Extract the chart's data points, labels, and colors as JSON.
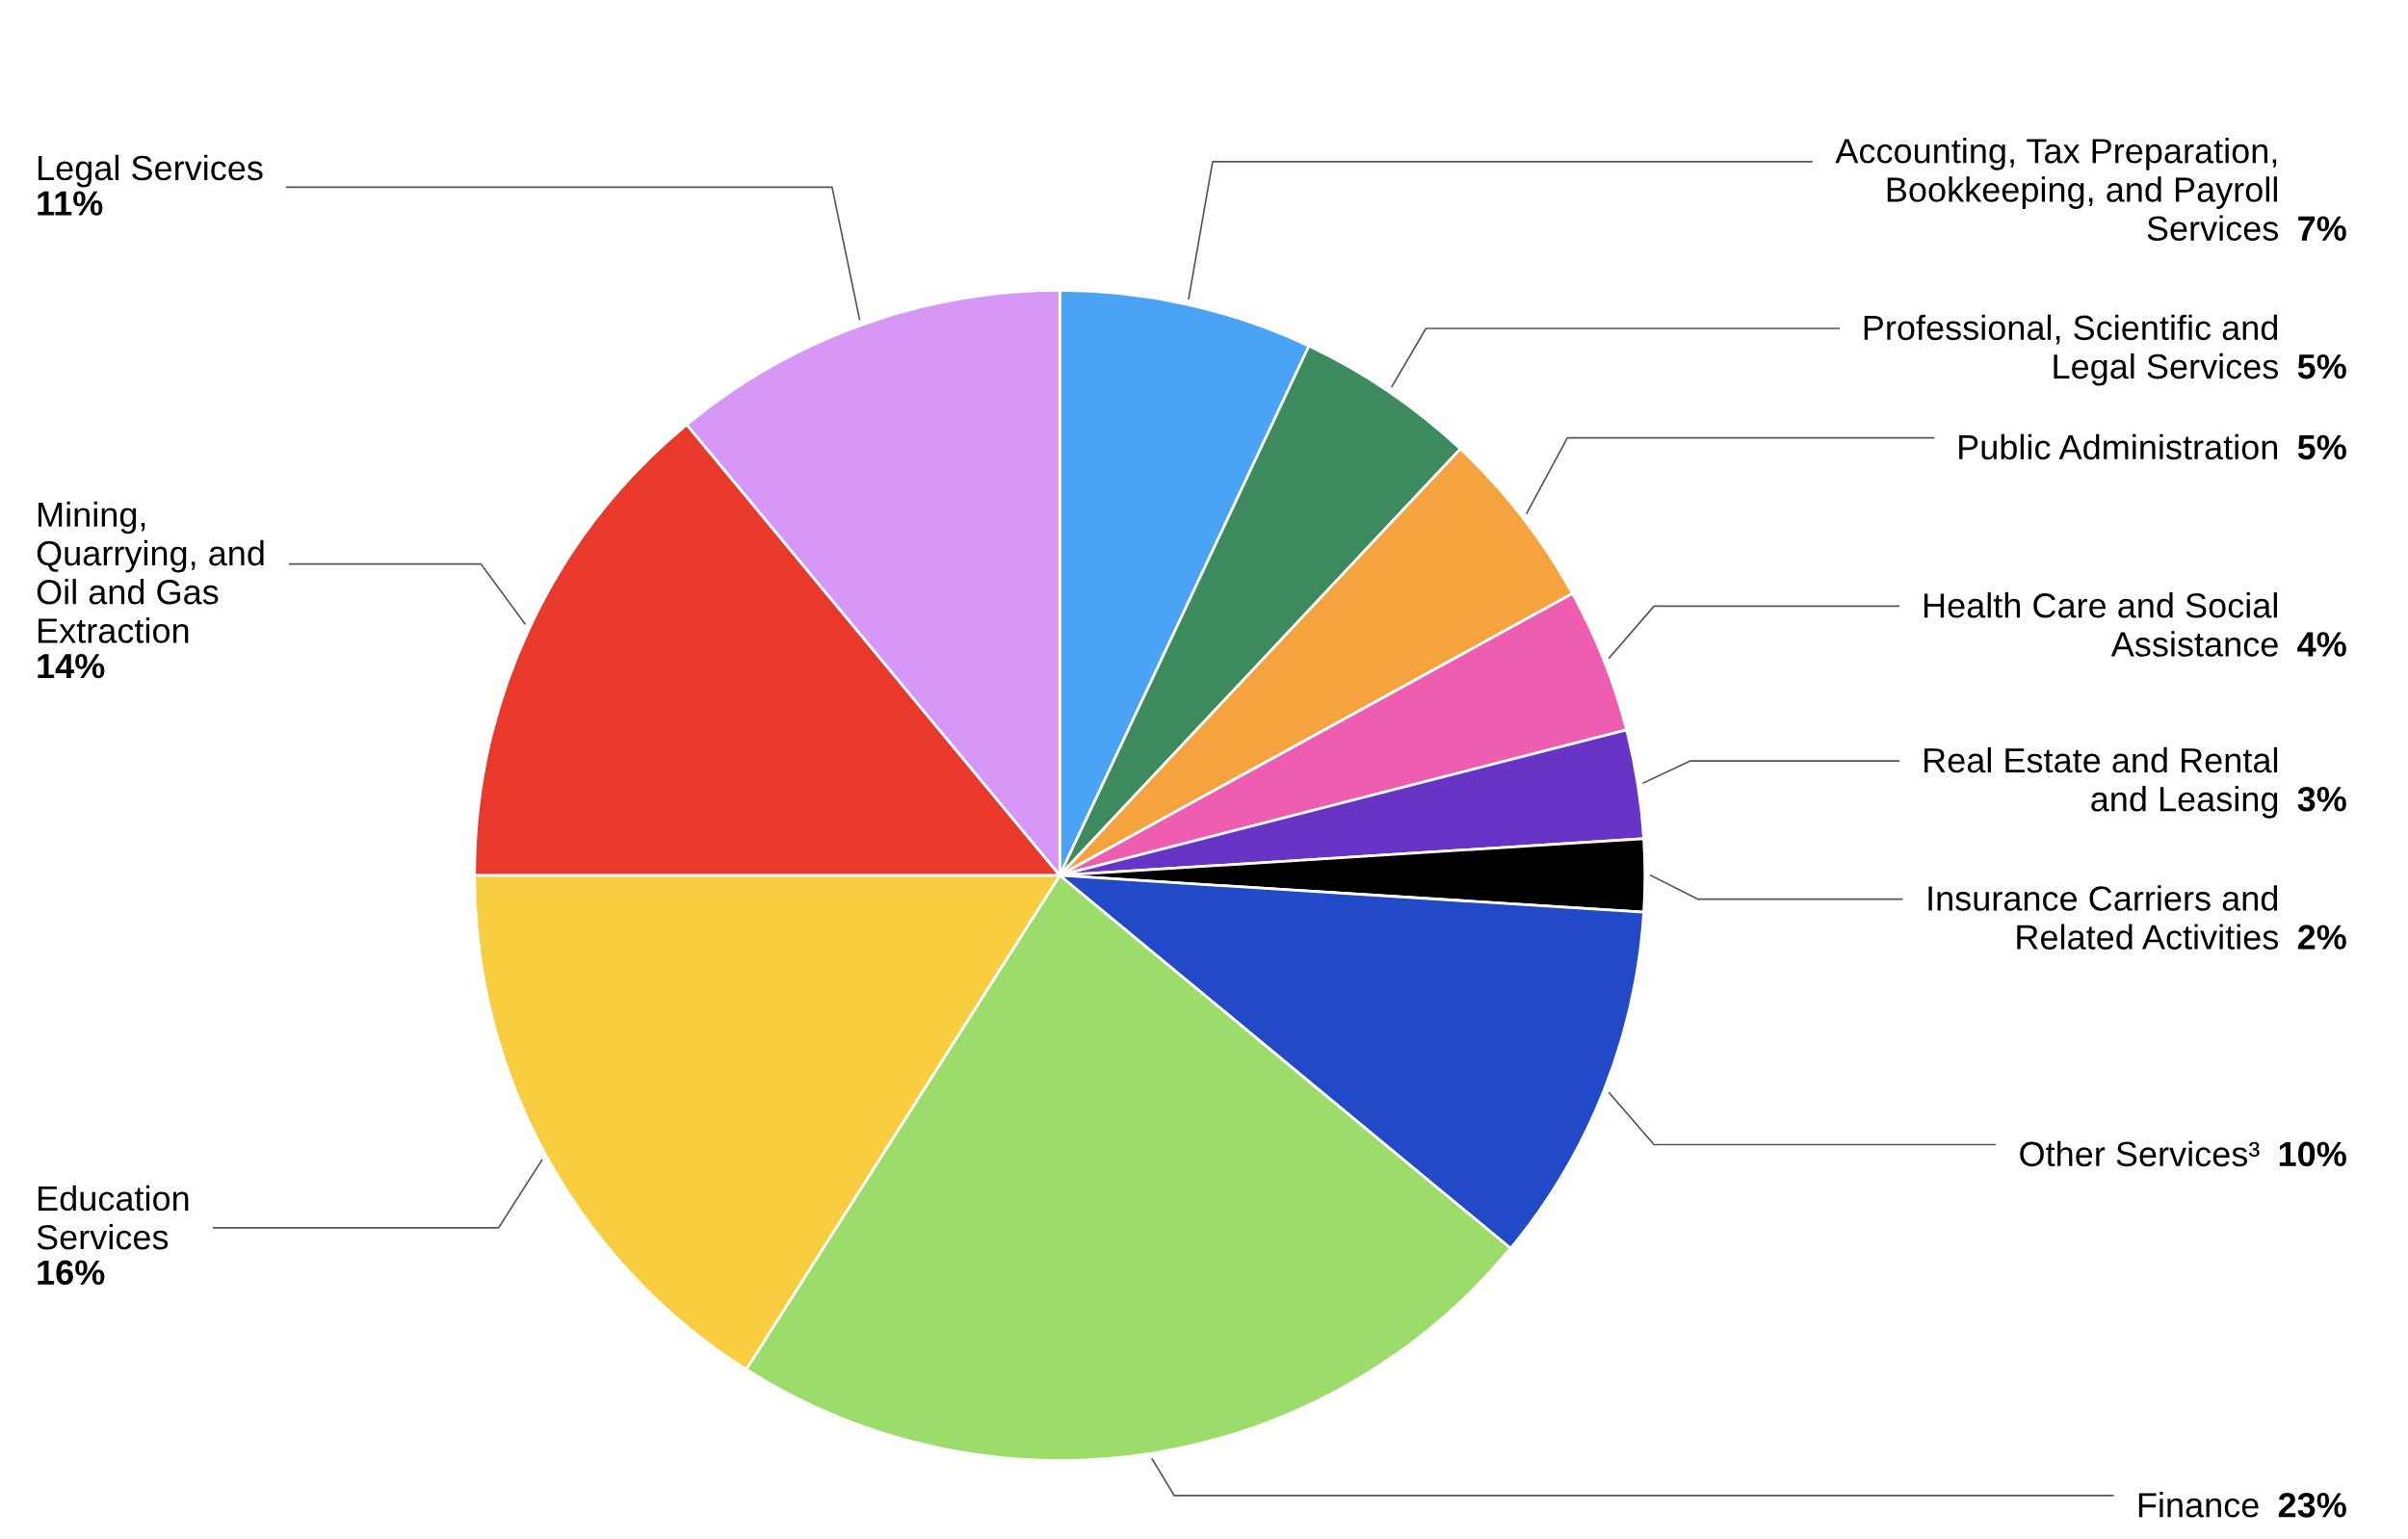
{
  "chart_data": {
    "type": "pie",
    "categories": [
      "Accounting, Tax Preparation,\nBookkeeping, and Payroll\nServices",
      "Professional, Scientific and\nLegal Services",
      "Public Administration",
      "Health Care and Social\nAssistance",
      "Real Estate and Rental\nand Leasing",
      "Insurance Carriers and\nRelated Activities",
      "Other Services³",
      "Finance",
      "Education\nServices",
      "Mining,\nQuarrying, and\nOil and Gas\nExtraction",
      "Legal Services"
    ],
    "values": [
      7,
      5,
      5,
      4,
      3,
      2,
      10,
      23,
      16,
      14,
      11
    ],
    "colors": [
      "#4aa3f5",
      "#3d8a5e",
      "#f4a33e",
      "#ee5db0",
      "#6834c6",
      "#000000",
      "#2149c8",
      "#9cdc6b",
      "#f8cd40",
      "#e8392a",
      "#d697f6"
    ],
    "value_labels": [
      "7%",
      "5%",
      "5%",
      "4%",
      "3%",
      "2%",
      "10%",
      "23%",
      "16%",
      "14%",
      "11%"
    ]
  }
}
